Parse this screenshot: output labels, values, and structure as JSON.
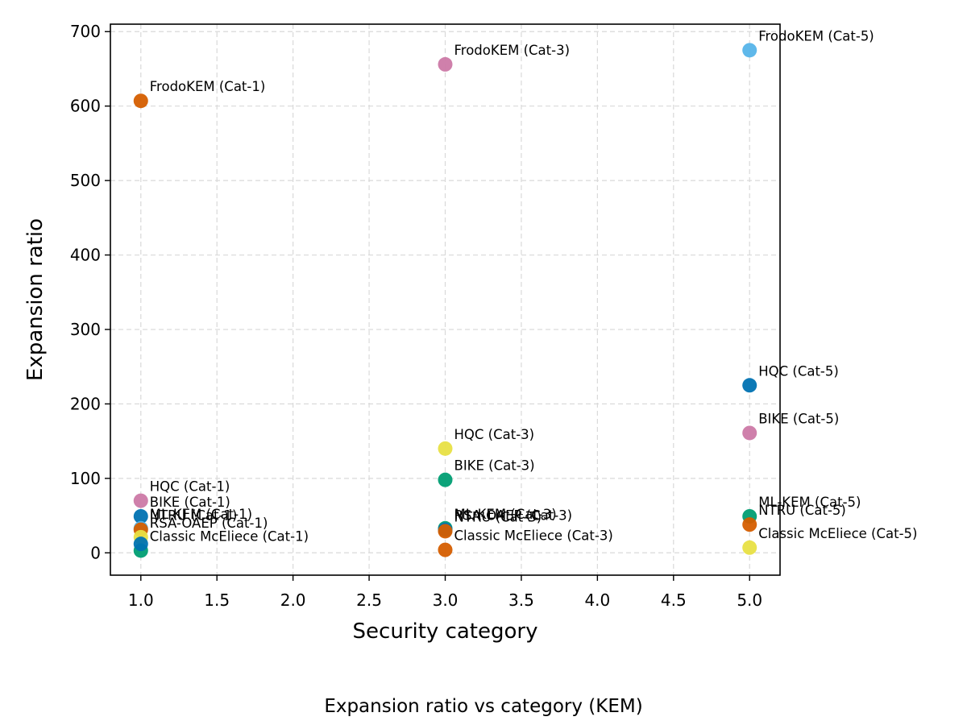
{
  "caption": "Expansion ratio vs category (KEM)",
  "chart_data": {
    "type": "scatter",
    "xlabel": "Security category",
    "ylabel": "Expansion ratio",
    "xlim": [
      0.8,
      5.2
    ],
    "ylim": [
      -30,
      710
    ],
    "x_ticks": [
      1.0,
      1.5,
      2.0,
      2.5,
      3.0,
      3.5,
      4.0,
      4.5,
      5.0
    ],
    "y_ticks": [
      0,
      100,
      200,
      300,
      400,
      500,
      600,
      700
    ],
    "grid": true,
    "legend": "none",
    "colors": {
      "orange": "#d55e00",
      "pink": "#cc79a7",
      "skyblue": "#56b4e9",
      "blue": "#0072b2",
      "yellow": "#e8e045",
      "green": "#009e73"
    },
    "points": [
      {
        "label": "FrodoKEM (Cat-1)",
        "x": 1,
        "y": 607,
        "color": "orange"
      },
      {
        "label": "HQC (Cat-1)",
        "x": 1,
        "y": 70,
        "color": "pink"
      },
      {
        "label": "BIKE (Cat-1)",
        "x": 1,
        "y": 49,
        "color": "blue"
      },
      {
        "label": "ML-KEM (Cat-1)",
        "x": 1,
        "y": 33,
        "color": "skyblue"
      },
      {
        "label": "NTRU (Cat-1)",
        "x": 1,
        "y": 31,
        "color": "orange"
      },
      {
        "label": "RSA-OAEP (Cat-1)",
        "x": 1,
        "y": 21,
        "color": "yellow"
      },
      {
        "label": "Classic McEliece (Cat-1)",
        "x": 1,
        "y": 3,
        "color": "green"
      },
      {
        "label": "",
        "x": 1,
        "y": 12,
        "color": "blue"
      },
      {
        "label": "FrodoKEM (Cat-3)",
        "x": 3,
        "y": 656,
        "color": "pink"
      },
      {
        "label": "HQC (Cat-3)",
        "x": 3,
        "y": 140,
        "color": "yellow"
      },
      {
        "label": "BIKE (Cat-3)",
        "x": 3,
        "y": 98,
        "color": "green"
      },
      {
        "label": "ML-KEM (Cat-3)",
        "x": 3,
        "y": 33,
        "color": "green"
      },
      {
        "label": "RSA-OAEP (Cat-3)",
        "x": 3,
        "y": 31,
        "color": "blue"
      },
      {
        "label": "NTRU (Cat-3)",
        "x": 3,
        "y": 29,
        "color": "orange"
      },
      {
        "label": "Classic McEliece (Cat-3)",
        "x": 3,
        "y": 4,
        "color": "orange"
      },
      {
        "label": "FrodoKEM (Cat-5)",
        "x": 5,
        "y": 675,
        "color": "skyblue"
      },
      {
        "label": "HQC (Cat-5)",
        "x": 5,
        "y": 225,
        "color": "blue"
      },
      {
        "label": "BIKE (Cat-5)",
        "x": 5,
        "y": 161,
        "color": "pink"
      },
      {
        "label": "ML-KEM (Cat-5)",
        "x": 5,
        "y": 49,
        "color": "green"
      },
      {
        "label": "NTRU (Cat-5)",
        "x": 5,
        "y": 38,
        "color": "orange"
      },
      {
        "label": "Classic McEliece (Cat-5)",
        "x": 5,
        "y": 7,
        "color": "yellow"
      }
    ]
  }
}
